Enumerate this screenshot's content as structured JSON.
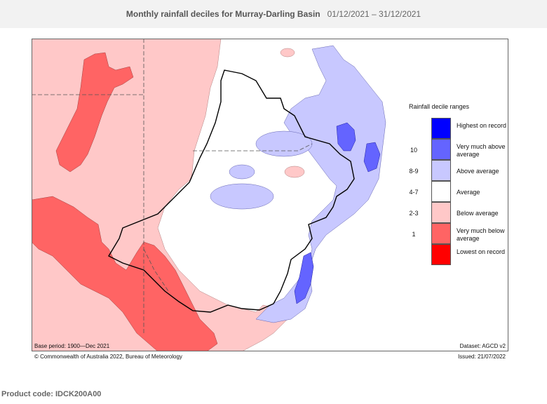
{
  "header": {
    "title": "Monthly rainfall deciles for Murray-Darling Basin",
    "period": "01/12/2021 – 31/12/2021"
  },
  "map": {
    "region": "Murray-Darling Basin",
    "base_period": "Base period: 1900—Dec 2021",
    "dataset": "Dataset: AGCD v2",
    "copyright": "© Commonwealth of Australia 2022, Bureau of Meteorology",
    "issued": "Issued: 21/07/2022"
  },
  "legend": {
    "title": "Rainfall decile ranges",
    "items": [
      {
        "code": "",
        "label": "Highest on record",
        "color": "#0000ff"
      },
      {
        "code": "10",
        "label": "Very much above average",
        "color": "#6464ff"
      },
      {
        "code": "8-9",
        "label": "Above average",
        "color": "#c8c8ff"
      },
      {
        "code": "4-7",
        "label": "Average",
        "color": "#ffffff"
      },
      {
        "code": "2-3",
        "label": "Below average",
        "color": "#ffc8c8"
      },
      {
        "code": "1",
        "label": "Very much below average",
        "color": "#ff6464"
      },
      {
        "code": "",
        "label": "Lowest on record",
        "color": "#ff0000"
      }
    ]
  },
  "footer": {
    "product_code": "Product code: IDCK200A00"
  }
}
